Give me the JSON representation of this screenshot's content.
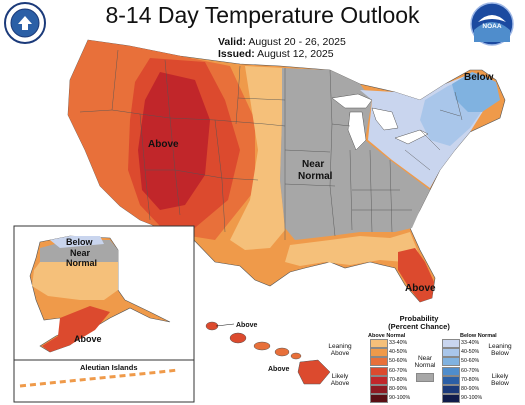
{
  "header": {
    "title": "8-14 Day Temperature Outlook",
    "valid_label": "Valid:",
    "valid_value": "August 20 - 26, 2025",
    "issued_label": "Issued:",
    "issued_value": "August 12, 2025"
  },
  "logos": {
    "left": "department-of-commerce-seal",
    "right": "noaa-logo",
    "right_text": "NOAA"
  },
  "map_labels": {
    "above_west": "Above",
    "near_normal_center_1": "Near",
    "near_normal_center_2": "Normal",
    "below_northeast": "Below",
    "above_florida": "Above",
    "alaska_below": "Below",
    "alaska_near_1": "Near",
    "alaska_near_2": "Normal",
    "alaska_above": "Above",
    "aleutian": "Aleutian Islands",
    "hawaii_above_1": "Above",
    "hawaii_above_2": "Above"
  },
  "legend": {
    "title_1": "Probability",
    "title_2": "(Percent Chance)",
    "above_head": "Above Normal",
    "below_head": "Below Normal",
    "leaning_above_1": "Leaning",
    "leaning_above_2": "Above",
    "likely_above_1": "Likely",
    "likely_above_2": "Above",
    "near_1": "Near",
    "near_2": "Normal",
    "leaning_below_1": "Leaning",
    "leaning_below_2": "Below",
    "likely_below_1": "Likely",
    "likely_below_2": "Below",
    "above_bins": [
      {
        "label": "33-40%",
        "color": "#f5c07a"
      },
      {
        "label": "40-50%",
        "color": "#ef9a4a"
      },
      {
        "label": "50-60%",
        "color": "#e8703a"
      },
      {
        "label": "60-70%",
        "color": "#dc4a2e"
      },
      {
        "label": "70-80%",
        "color": "#c1262a"
      },
      {
        "label": "80-90%",
        "color": "#8e1a22"
      },
      {
        "label": "90-100%",
        "color": "#5a0f14"
      }
    ],
    "below_bins": [
      {
        "label": "33-40%",
        "color": "#c9d5ee"
      },
      {
        "label": "40-50%",
        "color": "#a9c6ea"
      },
      {
        "label": "50-60%",
        "color": "#80b2e0"
      },
      {
        "label": "60-70%",
        "color": "#4f8dcc"
      },
      {
        "label": "70-80%",
        "color": "#2b5fa6"
      },
      {
        "label": "80-90%",
        "color": "#1b3a7a"
      },
      {
        "label": "90-100%",
        "color": "#101c4a"
      }
    ],
    "near_color": "#a7a7a7"
  }
}
